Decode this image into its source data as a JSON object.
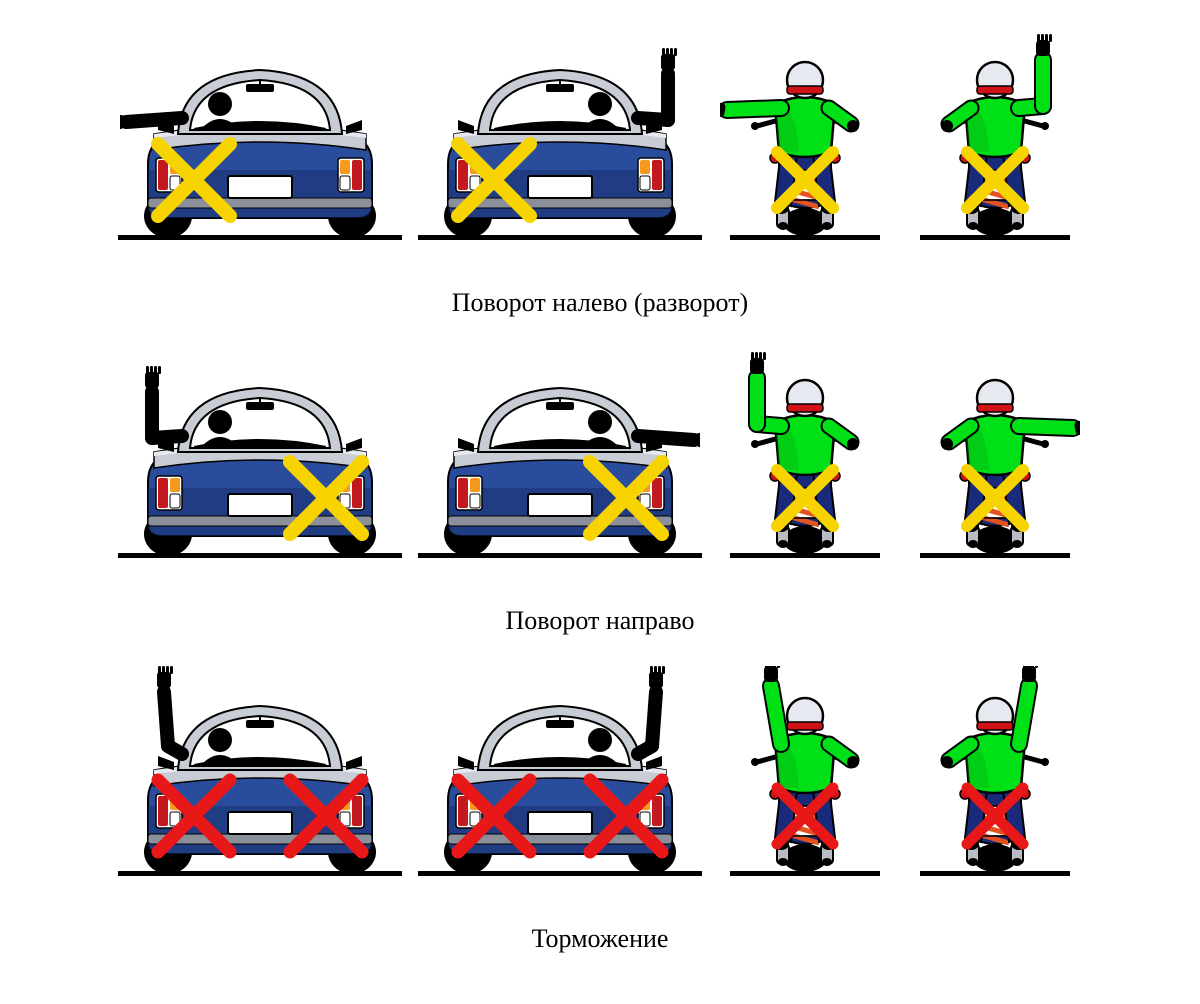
{
  "type": "infographic",
  "title": "Hand signals for turning and braking (rear view)",
  "background_color": "#ffffff",
  "ground_color": "#000000",
  "caption_fontsize": 26,
  "caption_color": "#000000",
  "colors": {
    "car_body": "#2a4c9c",
    "car_body_dark": "#142a66",
    "car_body_light": "#6a8fd6",
    "car_silver": "#c8ccd4",
    "car_silver_light": "#e6e9ef",
    "car_silver_dark": "#8a8f9a",
    "taillight_red": "#c4181f",
    "taillight_amber": "#f59a1c",
    "taillight_white": "#ffffff",
    "plate": "#ffffff",
    "tire": "#000000",
    "person_black": "#000000",
    "moto_jacket": "#00e016",
    "moto_jacket_shade": "#00a810",
    "moto_pants": "#1a2a7a",
    "moto_pants_shade": "#0c1444",
    "moto_helmet": "#e6e9ef",
    "moto_red": "#d01218",
    "moto_metal": "#b9bcc4",
    "hazard_stripe": "#e35320",
    "x_yellow": "#f7d400",
    "x_red": "#e81818"
  },
  "rows": [
    {
      "caption": "Поворот налево (разворот)",
      "cells": [
        {
          "vehicle": "car",
          "driver_side": "left",
          "arm": "left-out",
          "marks": [
            {
              "color": "#f7d400",
              "side": "left",
              "weight": 14
            }
          ]
        },
        {
          "vehicle": "car",
          "driver_side": "right",
          "arm": "right-up",
          "marks": [
            {
              "color": "#f7d400",
              "side": "left",
              "weight": 14
            }
          ]
        },
        {
          "vehicle": "moto",
          "arm": "left-out",
          "marks": [
            {
              "color": "#f7d400",
              "side": "center",
              "weight": 12
            }
          ]
        },
        {
          "vehicle": "moto",
          "arm": "right-up",
          "marks": [
            {
              "color": "#f7d400",
              "side": "center",
              "weight": 12
            }
          ]
        }
      ]
    },
    {
      "caption": "Поворот направо",
      "cells": [
        {
          "vehicle": "car",
          "driver_side": "left",
          "arm": "left-up",
          "marks": [
            {
              "color": "#f7d400",
              "side": "right",
              "weight": 14
            }
          ]
        },
        {
          "vehicle": "car",
          "driver_side": "right",
          "arm": "right-out",
          "marks": [
            {
              "color": "#f7d400",
              "side": "right",
              "weight": 14
            }
          ]
        },
        {
          "vehicle": "moto",
          "arm": "left-up",
          "marks": [
            {
              "color": "#f7d400",
              "side": "center",
              "weight": 12
            }
          ]
        },
        {
          "vehicle": "moto",
          "arm": "right-out",
          "marks": [
            {
              "color": "#f7d400",
              "side": "center",
              "weight": 12
            }
          ]
        }
      ]
    },
    {
      "caption": "Торможение",
      "cells": [
        {
          "vehicle": "car",
          "driver_side": "left",
          "arm": "left-raise",
          "marks": [
            {
              "color": "#e81818",
              "side": "left",
              "weight": 13
            },
            {
              "color": "#e81818",
              "side": "right",
              "weight": 13
            }
          ]
        },
        {
          "vehicle": "car",
          "driver_side": "right",
          "arm": "right-raise",
          "marks": [
            {
              "color": "#e81818",
              "side": "left",
              "weight": 13
            },
            {
              "color": "#e81818",
              "side": "right",
              "weight": 13
            }
          ]
        },
        {
          "vehicle": "moto",
          "arm": "left-raise",
          "marks": [
            {
              "color": "#e81818",
              "side": "center",
              "weight": 11
            }
          ]
        },
        {
          "vehicle": "moto",
          "arm": "right-raise",
          "marks": [
            {
              "color": "#e81818",
              "side": "center",
              "weight": 11
            }
          ]
        }
      ]
    }
  ]
}
